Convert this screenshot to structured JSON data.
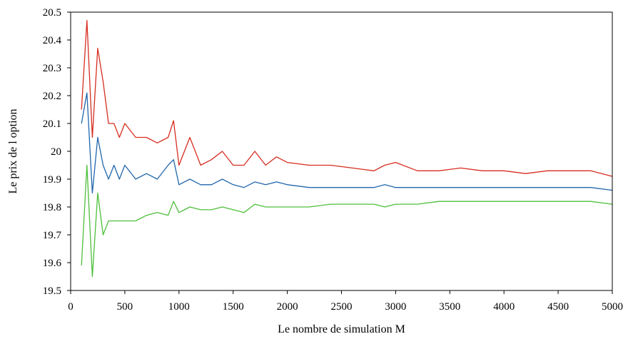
{
  "chart_data": {
    "type": "line",
    "xlabel": "Le nombre de simulation M",
    "ylabel": "Le prix de l option",
    "xlim": [
      0,
      5000
    ],
    "ylim": [
      19.5,
      20.5
    ],
    "xticks": [
      "0",
      "500",
      "1000",
      "1500",
      "2000",
      "2500",
      "3000",
      "3500",
      "4000",
      "4500",
      "5000"
    ],
    "yticks": [
      "19.5",
      "19.6",
      "19.7",
      "19.8",
      "19.9",
      "20",
      "20.1",
      "20.2",
      "20.3",
      "20.4",
      "20.5"
    ],
    "grid": false,
    "legend": "none",
    "x": [
      100,
      150,
      200,
      250,
      300,
      350,
      400,
      450,
      500,
      600,
      700,
      800,
      900,
      950,
      1000,
      1100,
      1200,
      1300,
      1400,
      1500,
      1600,
      1700,
      1800,
      1900,
      2000,
      2200,
      2400,
      2600,
      2800,
      2900,
      3000,
      3200,
      3400,
      3600,
      3800,
      4000,
      4200,
      4400,
      4600,
      4800,
      5000
    ],
    "series": [
      {
        "color": "#d62d20",
        "values": [
          20.15,
          20.47,
          20.05,
          20.37,
          20.25,
          20.1,
          20.1,
          20.05,
          20.1,
          20.05,
          20.05,
          20.03,
          20.05,
          20.11,
          19.95,
          20.05,
          19.95,
          19.97,
          20.0,
          19.95,
          19.95,
          20.0,
          19.95,
          19.98,
          19.96,
          19.95,
          19.95,
          19.94,
          19.93,
          19.95,
          19.96,
          19.93,
          19.93,
          19.94,
          19.93,
          19.93,
          19.92,
          19.93,
          19.93,
          19.93,
          19.91
        ]
      },
      {
        "color": "#2166ac",
        "values": [
          20.1,
          20.21,
          19.85,
          20.05,
          19.95,
          19.9,
          19.95,
          19.9,
          19.95,
          19.9,
          19.92,
          19.9,
          19.95,
          19.97,
          19.88,
          19.9,
          19.88,
          19.88,
          19.9,
          19.88,
          19.87,
          19.89,
          19.88,
          19.89,
          19.88,
          19.87,
          19.87,
          19.87,
          19.87,
          19.88,
          19.87,
          19.87,
          19.87,
          19.87,
          19.87,
          19.87,
          19.87,
          19.87,
          19.87,
          19.87,
          19.86
        ]
      },
      {
        "color": "#4dbf3a",
        "values": [
          19.59,
          19.95,
          19.55,
          19.85,
          19.7,
          19.75,
          19.75,
          19.75,
          19.75,
          19.75,
          19.77,
          19.78,
          19.77,
          19.82,
          19.78,
          19.8,
          19.79,
          19.79,
          19.8,
          19.79,
          19.78,
          19.81,
          19.8,
          19.8,
          19.8,
          19.8,
          19.81,
          19.81,
          19.81,
          19.8,
          19.81,
          19.81,
          19.82,
          19.82,
          19.82,
          19.82,
          19.82,
          19.82,
          19.82,
          19.82,
          19.81
        ]
      }
    ]
  }
}
